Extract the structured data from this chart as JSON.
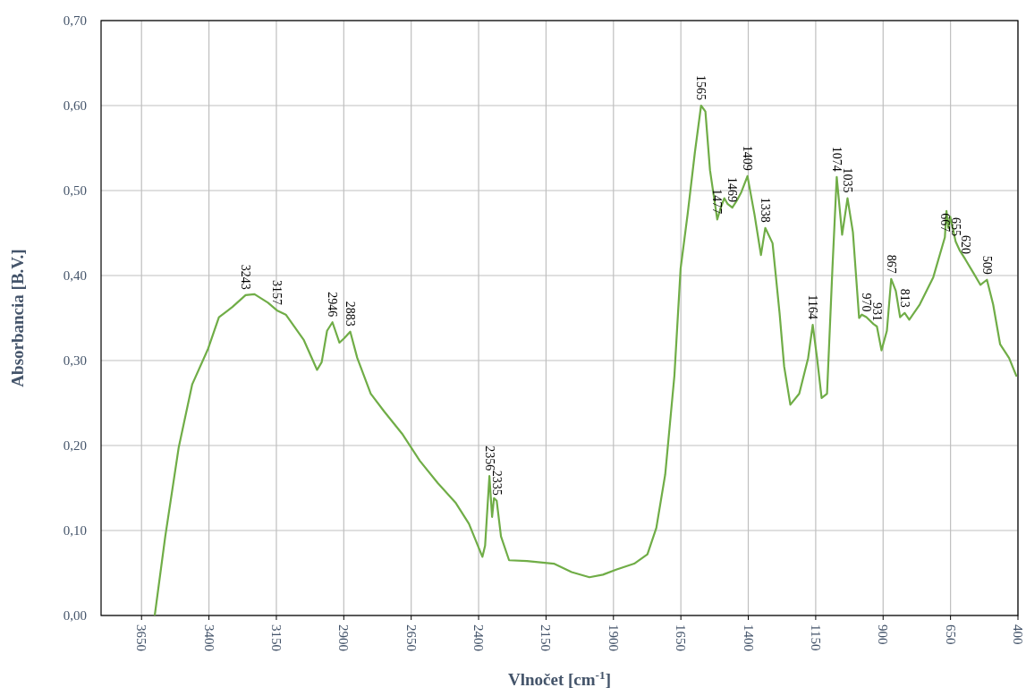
{
  "chart_data": {
    "type": "line",
    "xlabel": "Vlnočet [cm$^{-1}$]",
    "ylabel": "Absorbancia [B.V.]",
    "xlim": [
      3800,
      400
    ],
    "xticks": [
      3650,
      3400,
      3150,
      2900,
      2650,
      2400,
      2150,
      1900,
      1650,
      1400,
      1150,
      900,
      650,
      400
    ],
    "ylim": [
      0,
      0.7
    ],
    "yticks": [
      {
        "value": 0,
        "label": "0,00"
      },
      {
        "value": 0.1,
        "label": "0,10"
      },
      {
        "value": 0.2,
        "label": "0,20"
      },
      {
        "value": 0.3,
        "label": "0,30"
      },
      {
        "value": 0.4,
        "label": "0,40"
      },
      {
        "value": 0.5,
        "label": "0,50"
      },
      {
        "value": 0.6,
        "label": "0,60"
      },
      {
        "value": 0.7,
        "label": "0,70"
      }
    ],
    "grid": true,
    "marker": "none",
    "line_style": "solid",
    "series": [
      {
        "color": "#70ad47",
        "x": [
          3601,
          3562,
          3512,
          3462,
          3403,
          3363,
          3313,
          3264,
          3231,
          3181,
          3148,
          3115,
          3048,
          2999,
          2982,
          2962,
          2942,
          2916,
          2899,
          2876,
          2850,
          2800,
          2750,
          2684,
          2618,
          2552,
          2486,
          2436,
          2386,
          2376,
          2360,
          2350,
          2343,
          2333,
          2317,
          2287,
          2221,
          2121,
          2055,
          1989,
          1939,
          1890,
          1823,
          1774,
          1741,
          1708,
          1674,
          1651,
          1625,
          1598,
          1575,
          1559,
          1542,
          1515,
          1502,
          1489,
          1476,
          1459,
          1443,
          1426,
          1403,
          1377,
          1353,
          1337,
          1310,
          1284,
          1267,
          1244,
          1211,
          1178,
          1161,
          1145,
          1128,
          1108,
          1088,
          1072,
          1052,
          1032,
          1012,
          989,
          979,
          962,
          936,
          923,
          906,
          886,
          870,
          853,
          837,
          820,
          803,
          764,
          714,
          671,
          665,
          658,
          651,
          631,
          615,
          595,
          565,
          539,
          515,
          492,
          466,
          433,
          406
        ],
        "values": [
          0,
          0.093,
          0.198,
          0.272,
          0.314,
          0.351,
          0.363,
          0.377,
          0.378,
          0.368,
          0.359,
          0.354,
          0.324,
          0.289,
          0.298,
          0.335,
          0.345,
          0.321,
          0.326,
          0.334,
          0.303,
          0.261,
          0.24,
          0.214,
          0.182,
          0.156,
          0.133,
          0.108,
          0.069,
          0.082,
          0.164,
          0.116,
          0.138,
          0.135,
          0.093,
          0.065,
          0.064,
          0.061,
          0.051,
          0.045,
          0.048,
          0.054,
          0.061,
          0.072,
          0.103,
          0.166,
          0.282,
          0.408,
          0.472,
          0.545,
          0.6,
          0.593,
          0.524,
          0.466,
          0.48,
          0.491,
          0.484,
          0.48,
          0.488,
          0.498,
          0.517,
          0.472,
          0.424,
          0.456,
          0.438,
          0.356,
          0.293,
          0.248,
          0.261,
          0.303,
          0.342,
          0.303,
          0.256,
          0.261,
          0.408,
          0.516,
          0.448,
          0.491,
          0.451,
          0.35,
          0.354,
          0.351,
          0.343,
          0.34,
          0.312,
          0.335,
          0.396,
          0.382,
          0.351,
          0.356,
          0.348,
          0.366,
          0.398,
          0.445,
          0.476,
          0.456,
          0.469,
          0.44,
          0.429,
          0.419,
          0.403,
          0.389,
          0.395,
          0.366,
          0.319,
          0.303,
          0.282
        ]
      }
    ],
    "annotations": [
      {
        "text": "3243",
        "x": 3264,
        "y": 0.377
      },
      {
        "text": "3157",
        "x": 3148,
        "y": 0.359
      },
      {
        "text": "2946",
        "x": 2942,
        "y": 0.345
      },
      {
        "text": "2883",
        "x": 2876,
        "y": 0.334
      },
      {
        "text": "2356",
        "x": 2360,
        "y": 0.164
      },
      {
        "text": "2335",
        "x": 2333,
        "y": 0.135
      },
      {
        "text": "1565",
        "x": 1575,
        "y": 0.6
      },
      {
        "text": "1477",
        "x": 1515,
        "y": 0.466
      },
      {
        "text": "1469",
        "x": 1459,
        "y": 0.48
      },
      {
        "text": "1409",
        "x": 1403,
        "y": 0.517
      },
      {
        "text": "1338",
        "x": 1337,
        "y": 0.456
      },
      {
        "text": "1164",
        "x": 1161,
        "y": 0.342
      },
      {
        "text": "1074",
        "x": 1072,
        "y": 0.516
      },
      {
        "text": "1035",
        "x": 1032,
        "y": 0.491
      },
      {
        "text": "970",
        "x": 962,
        "y": 0.351
      },
      {
        "text": "931",
        "x": 923,
        "y": 0.34
      },
      {
        "text": "867",
        "x": 870,
        "y": 0.396
      },
      {
        "text": "813",
        "x": 820,
        "y": 0.356
      },
      {
        "text": "667",
        "x": 671,
        "y": 0.445
      },
      {
        "text": "655",
        "x": 631,
        "y": 0.44
      },
      {
        "text": "620",
        "x": 595,
        "y": 0.419
      },
      {
        "text": "509",
        "x": 515,
        "y": 0.395
      }
    ]
  }
}
